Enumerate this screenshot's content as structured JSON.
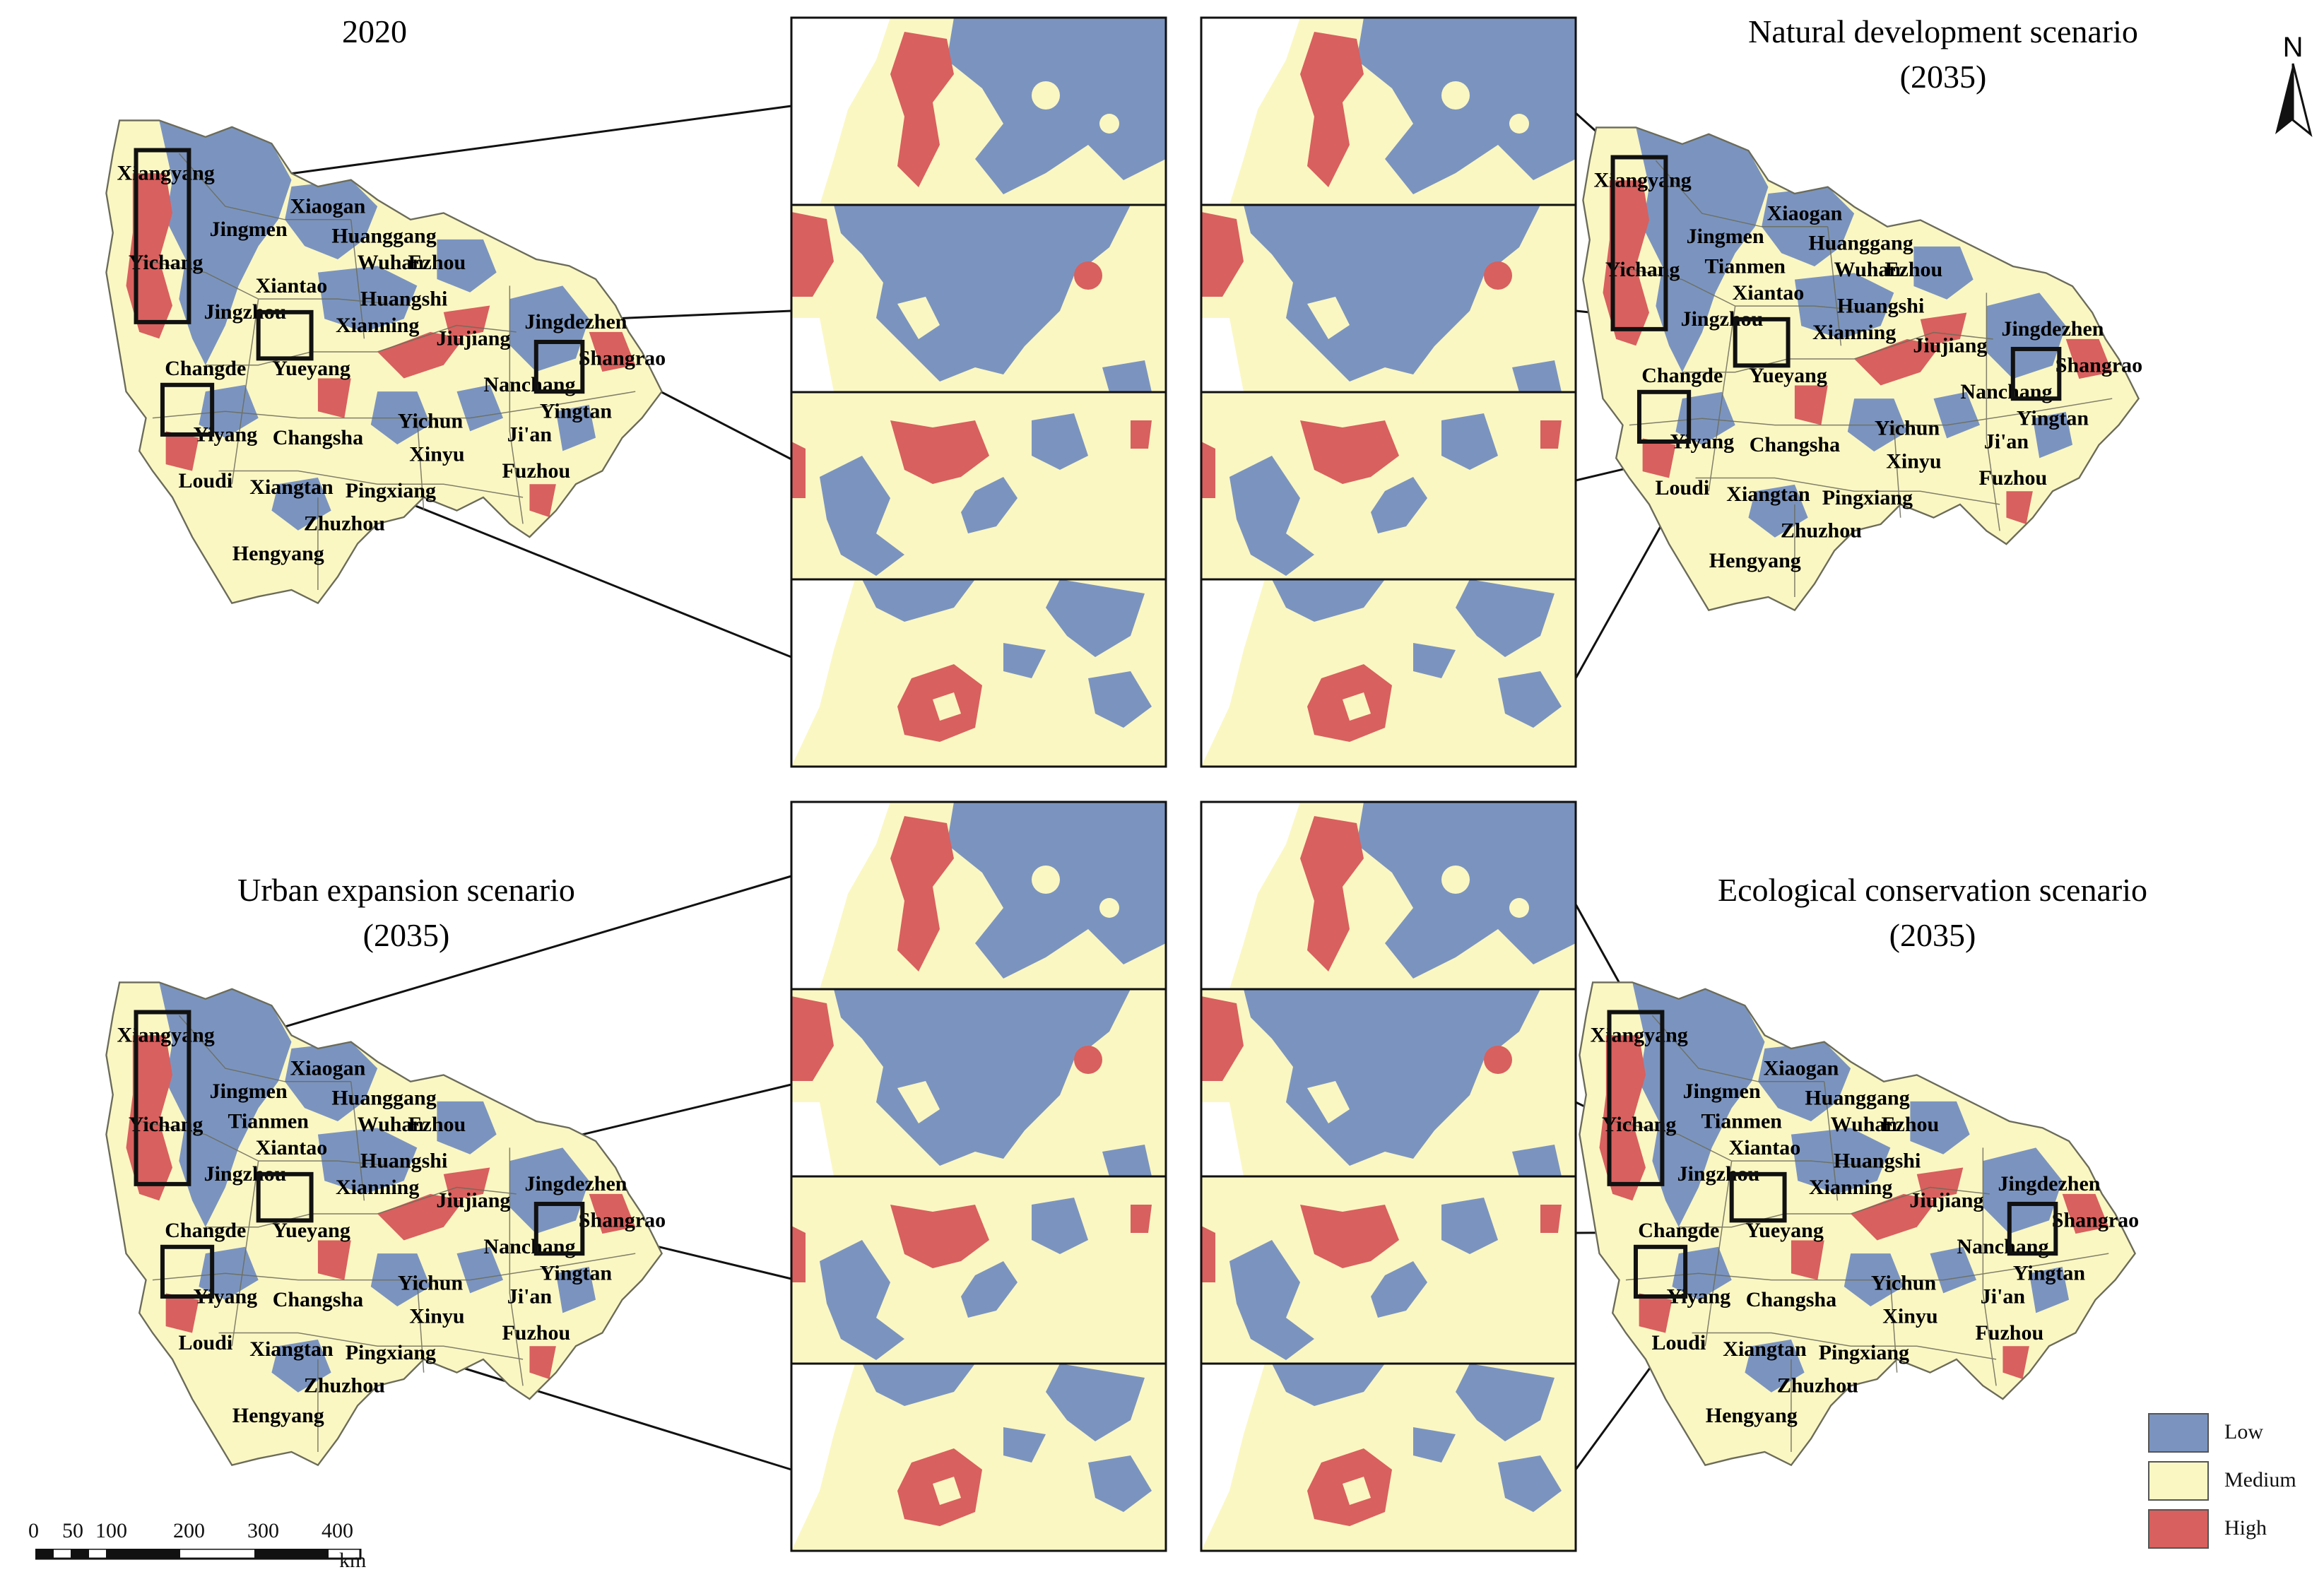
{
  "panels": [
    {
      "id": "p2020",
      "title_lines": [
        "2020"
      ]
    },
    {
      "id": "pnat",
      "title_lines": [
        "Natural development scenario",
        "(2035)"
      ]
    },
    {
      "id": "purb",
      "title_lines": [
        "Urban expansion scenario",
        "(2035)"
      ]
    },
    {
      "id": "peco",
      "title_lines": [
        "Ecological conservation scenario",
        "(2035)"
      ]
    }
  ],
  "city_labels": [
    "Xiangyang",
    "Xiaogan",
    "Jingmen",
    "Huanggang",
    "Yichang",
    "Tianmen",
    "Wuhan",
    "Ezhou",
    "Xiantao",
    "Huangshi",
    "Jingzhou",
    "Xianning",
    "Jingdezhen",
    "Jiujiang",
    "Shangrao",
    "Changde",
    "Yueyang",
    "Nanchang",
    "Yiyang",
    "Changsha",
    "Yichun",
    "Yingtan",
    "Xinyu",
    "Ji'an",
    "Loudi",
    "Xiangtan",
    "Pingxiang",
    "Fuzhou",
    "Zhuzhou",
    "Hengyang"
  ],
  "labels_without_tianmen_in_2020": true,
  "legend": {
    "items": [
      {
        "label": "Low",
        "color": "#7b94bf"
      },
      {
        "label": "Medium",
        "color": "#fbf7c3"
      },
      {
        "label": "High",
        "color": "#d8605e"
      }
    ]
  },
  "north_arrow": {
    "label": "N"
  },
  "scale_bar": {
    "ticks": [
      "0",
      "50",
      "100",
      "200",
      "300",
      "400"
    ],
    "unit": "km"
  },
  "colors": {
    "low": "#7b94bf",
    "medium": "#fbf7c3",
    "high": "#d8605e",
    "boundary": "#6b6b5a",
    "frame": "#111111"
  }
}
